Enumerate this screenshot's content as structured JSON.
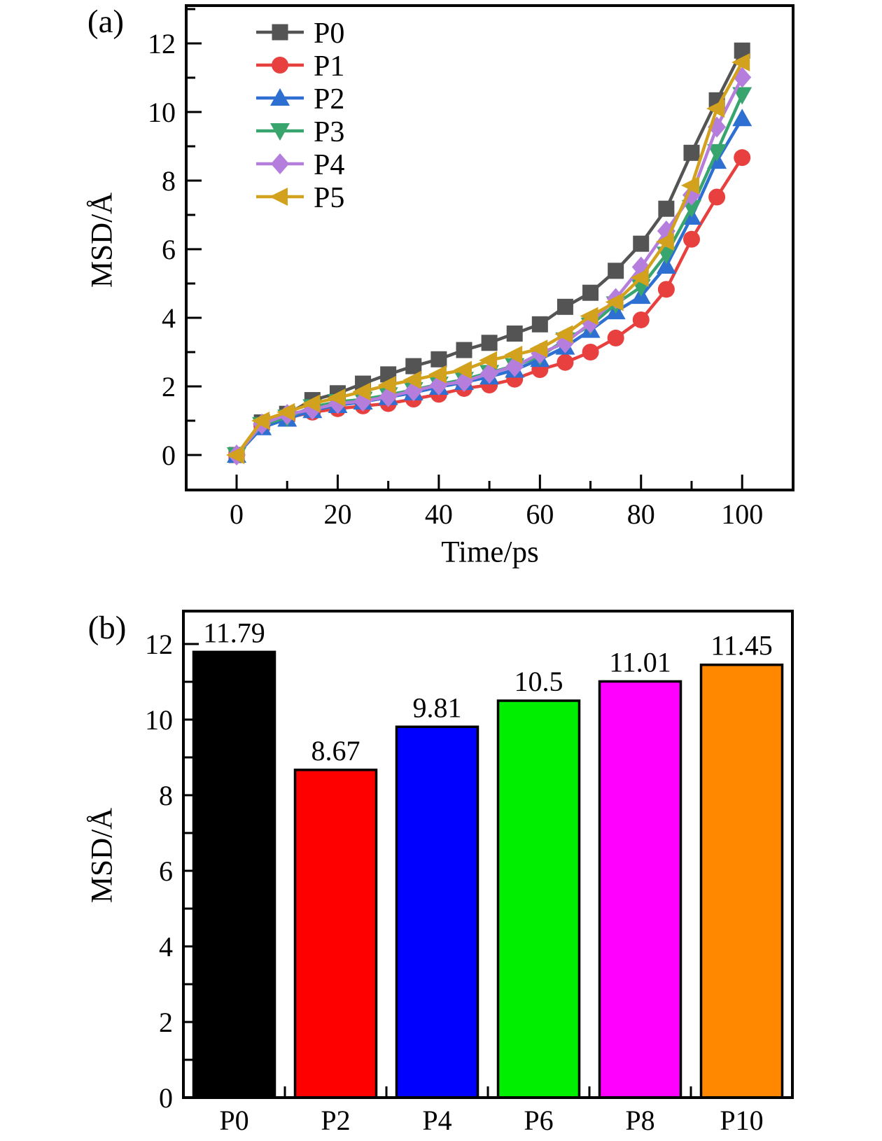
{
  "chart_data": [
    {
      "id": "panel_a",
      "type": "line",
      "panel_tag": "(a)",
      "title": "",
      "xlabel": "Time/ps",
      "ylabel": "MSD/Å",
      "xlim": [
        -10,
        110
      ],
      "ylim": [
        -1,
        13.1
      ],
      "x_major_ticks": [
        0,
        20,
        40,
        60,
        80,
        100
      ],
      "x_minor_ticks": [
        10,
        30,
        50,
        70,
        90
      ],
      "y_major_ticks": [
        0,
        2,
        4,
        6,
        8,
        10,
        12
      ],
      "y_minor_ticks": [
        1,
        3,
        5,
        7,
        9,
        11,
        13
      ],
      "grid": false,
      "legend_position": "upper-left-inside",
      "x": [
        0,
        5,
        10,
        15,
        20,
        25,
        30,
        35,
        40,
        45,
        50,
        55,
        60,
        65,
        70,
        75,
        80,
        85,
        90,
        95,
        100
      ],
      "series": [
        {
          "name": "P0",
          "color": "#545454",
          "marker": "square",
          "values": [
            0,
            0.95,
            1.2,
            1.6,
            1.8,
            2.08,
            2.35,
            2.59,
            2.79,
            3.06,
            3.27,
            3.54,
            3.81,
            4.32,
            4.73,
            5.37,
            6.16,
            7.18,
            8.81,
            10.34,
            11.79
          ]
        },
        {
          "name": "P1",
          "color": "#e8403f",
          "marker": "circle",
          "values": [
            0,
            0.85,
            1.08,
            1.25,
            1.35,
            1.43,
            1.5,
            1.63,
            1.77,
            1.94,
            2.04,
            2.21,
            2.49,
            2.7,
            3.0,
            3.41,
            3.94,
            4.83,
            6.29,
            7.52,
            8.67
          ]
        },
        {
          "name": "P2",
          "color": "#2e6fd2",
          "marker": "triangle-up",
          "values": [
            0,
            0.8,
            1.05,
            1.3,
            1.45,
            1.55,
            1.68,
            1.82,
            1.98,
            2.12,
            2.28,
            2.48,
            2.79,
            3.15,
            3.64,
            4.18,
            4.63,
            5.51,
            6.94,
            8.57,
            9.81
          ]
        },
        {
          "name": "P3",
          "color": "#38a56f",
          "marker": "triangle-down",
          "values": [
            0,
            0.88,
            1.1,
            1.4,
            1.55,
            1.62,
            1.75,
            1.9,
            2.06,
            2.2,
            2.4,
            2.6,
            2.88,
            3.35,
            3.78,
            4.4,
            4.9,
            5.85,
            7.21,
            8.84,
            10.5
          ]
        },
        {
          "name": "P4",
          "color": "#b57edd",
          "marker": "diamond",
          "values": [
            0,
            0.9,
            1.18,
            1.33,
            1.5,
            1.57,
            1.7,
            1.87,
            2.04,
            2.14,
            2.38,
            2.58,
            2.96,
            3.27,
            3.85,
            4.56,
            5.48,
            6.53,
            7.58,
            9.56,
            11.01
          ]
        },
        {
          "name": "P5",
          "color": "#d2a11d",
          "marker": "triangle-left",
          "values": [
            0,
            1.0,
            1.25,
            1.5,
            1.67,
            1.85,
            2.04,
            2.19,
            2.35,
            2.48,
            2.76,
            2.92,
            3.1,
            3.52,
            4.05,
            4.46,
            5.17,
            6.22,
            7.86,
            10.1,
            11.45
          ]
        }
      ]
    },
    {
      "id": "panel_b",
      "type": "bar",
      "panel_tag": "(b)",
      "title": "",
      "xlabel": "",
      "ylabel": "MSD/Å",
      "ylim": [
        0,
        12.9
      ],
      "y_major_ticks": [
        0,
        2,
        4,
        6,
        8,
        10,
        12
      ],
      "y_minor_ticks": [
        1,
        3,
        5,
        7,
        9,
        11
      ],
      "grid": false,
      "categories": [
        "P0",
        "P2",
        "P4",
        "P6",
        "P8",
        "P10"
      ],
      "values": [
        11.79,
        8.67,
        9.81,
        10.5,
        11.01,
        11.45
      ],
      "value_labels": [
        "11.79",
        "8.67",
        "9.81",
        "10.5",
        "11.01",
        "11.45"
      ],
      "bar_colors": [
        "#000000",
        "#ff0000",
        "#0000ff",
        "#00ee00",
        "#ff00ff",
        "#ff8800"
      ],
      "bar_outline": "#000000"
    }
  ]
}
